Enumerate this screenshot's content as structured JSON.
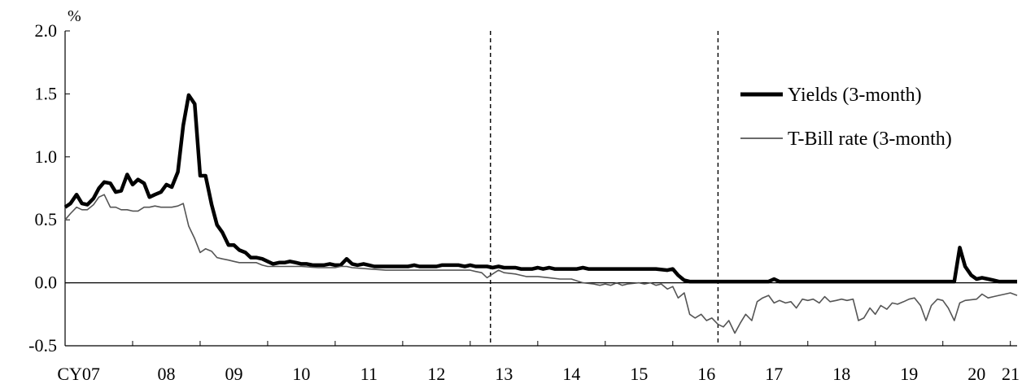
{
  "chart_data": {
    "type": "line",
    "y_unit": "%",
    "ylim": [
      -0.5,
      2.0
    ],
    "y_ticks": [
      "2.0",
      "1.5",
      "1.0",
      "0.5",
      "0.0",
      "-0.5"
    ],
    "x_ticks": [
      "CY07",
      "08",
      "09",
      "10",
      "11",
      "12",
      "13",
      "14",
      "15",
      "16",
      "17",
      "18",
      "19",
      "20",
      "21"
    ],
    "xlim": [
      2007.0,
      2021.1
    ],
    "reference_lines": [
      2013.3,
      2016.67
    ],
    "grid": false,
    "legend_position": "top-right",
    "series": [
      {
        "name": "Yields (3-month)",
        "style": "thick",
        "color": "#000000",
        "points": [
          [
            2007.0,
            0.6
          ],
          [
            2007.08,
            0.63
          ],
          [
            2007.17,
            0.7
          ],
          [
            2007.25,
            0.63
          ],
          [
            2007.33,
            0.62
          ],
          [
            2007.42,
            0.67
          ],
          [
            2007.5,
            0.75
          ],
          [
            2007.58,
            0.8
          ],
          [
            2007.67,
            0.79
          ],
          [
            2007.75,
            0.72
          ],
          [
            2007.83,
            0.73
          ],
          [
            2007.92,
            0.86
          ],
          [
            2008.0,
            0.78
          ],
          [
            2008.08,
            0.82
          ],
          [
            2008.17,
            0.79
          ],
          [
            2008.25,
            0.68
          ],
          [
            2008.33,
            0.7
          ],
          [
            2008.42,
            0.72
          ],
          [
            2008.5,
            0.78
          ],
          [
            2008.58,
            0.76
          ],
          [
            2008.67,
            0.88
          ],
          [
            2008.75,
            1.25
          ],
          [
            2008.83,
            1.49
          ],
          [
            2008.92,
            1.42
          ],
          [
            2009.0,
            0.85
          ],
          [
            2009.08,
            0.85
          ],
          [
            2009.17,
            0.62
          ],
          [
            2009.25,
            0.46
          ],
          [
            2009.33,
            0.4
          ],
          [
            2009.42,
            0.3
          ],
          [
            2009.5,
            0.3
          ],
          [
            2009.58,
            0.26
          ],
          [
            2009.67,
            0.24
          ],
          [
            2009.75,
            0.2
          ],
          [
            2009.83,
            0.2
          ],
          [
            2009.92,
            0.19
          ],
          [
            2010.0,
            0.17
          ],
          [
            2010.08,
            0.15
          ],
          [
            2010.17,
            0.16
          ],
          [
            2010.25,
            0.16
          ],
          [
            2010.33,
            0.17
          ],
          [
            2010.42,
            0.16
          ],
          [
            2010.5,
            0.15
          ],
          [
            2010.58,
            0.15
          ],
          [
            2010.67,
            0.14
          ],
          [
            2010.75,
            0.14
          ],
          [
            2010.83,
            0.14
          ],
          [
            2010.92,
            0.15
          ],
          [
            2011.0,
            0.14
          ],
          [
            2011.08,
            0.14
          ],
          [
            2011.17,
            0.19
          ],
          [
            2011.25,
            0.15
          ],
          [
            2011.33,
            0.14
          ],
          [
            2011.42,
            0.15
          ],
          [
            2011.5,
            0.14
          ],
          [
            2011.58,
            0.13
          ],
          [
            2011.67,
            0.13
          ],
          [
            2011.75,
            0.13
          ],
          [
            2011.83,
            0.13
          ],
          [
            2011.92,
            0.13
          ],
          [
            2012.0,
            0.13
          ],
          [
            2012.08,
            0.13
          ],
          [
            2012.17,
            0.14
          ],
          [
            2012.25,
            0.13
          ],
          [
            2012.33,
            0.13
          ],
          [
            2012.42,
            0.13
          ],
          [
            2012.5,
            0.13
          ],
          [
            2012.58,
            0.14
          ],
          [
            2012.67,
            0.14
          ],
          [
            2012.75,
            0.14
          ],
          [
            2012.83,
            0.14
          ],
          [
            2012.92,
            0.13
          ],
          [
            2013.0,
            0.14
          ],
          [
            2013.08,
            0.13
          ],
          [
            2013.17,
            0.13
          ],
          [
            2013.25,
            0.13
          ],
          [
            2013.33,
            0.12
          ],
          [
            2013.42,
            0.13
          ],
          [
            2013.5,
            0.12
          ],
          [
            2013.58,
            0.12
          ],
          [
            2013.67,
            0.12
          ],
          [
            2013.75,
            0.11
          ],
          [
            2013.83,
            0.11
          ],
          [
            2013.92,
            0.11
          ],
          [
            2014.0,
            0.12
          ],
          [
            2014.08,
            0.11
          ],
          [
            2014.17,
            0.12
          ],
          [
            2014.25,
            0.11
          ],
          [
            2014.33,
            0.11
          ],
          [
            2014.42,
            0.11
          ],
          [
            2014.5,
            0.11
          ],
          [
            2014.58,
            0.11
          ],
          [
            2014.67,
            0.12
          ],
          [
            2014.75,
            0.11
          ],
          [
            2014.83,
            0.11
          ],
          [
            2014.92,
            0.11
          ],
          [
            2015.0,
            0.11
          ],
          [
            2015.25,
            0.11
          ],
          [
            2015.5,
            0.11
          ],
          [
            2015.75,
            0.11
          ],
          [
            2015.92,
            0.1
          ],
          [
            2016.0,
            0.11
          ],
          [
            2016.08,
            0.06
          ],
          [
            2016.17,
            0.02
          ],
          [
            2016.25,
            0.01
          ],
          [
            2016.5,
            0.01
          ],
          [
            2016.67,
            0.01
          ],
          [
            2017.0,
            0.01
          ],
          [
            2017.42,
            0.01
          ],
          [
            2017.5,
            0.03
          ],
          [
            2017.58,
            0.01
          ],
          [
            2018.0,
            0.01
          ],
          [
            2018.5,
            0.01
          ],
          [
            2019.0,
            0.01
          ],
          [
            2019.5,
            0.01
          ],
          [
            2020.0,
            0.01
          ],
          [
            2020.17,
            0.01
          ],
          [
            2020.25,
            0.28
          ],
          [
            2020.33,
            0.13
          ],
          [
            2020.42,
            0.06
          ],
          [
            2020.5,
            0.03
          ],
          [
            2020.58,
            0.04
          ],
          [
            2020.67,
            0.03
          ],
          [
            2020.75,
            0.02
          ],
          [
            2020.83,
            0.01
          ],
          [
            2021.1,
            0.01
          ]
        ]
      },
      {
        "name": "T-Bill rate (3-month)",
        "style": "thin",
        "color": "#555555",
        "points": [
          [
            2007.0,
            0.5
          ],
          [
            2007.08,
            0.55
          ],
          [
            2007.17,
            0.6
          ],
          [
            2007.25,
            0.58
          ],
          [
            2007.33,
            0.58
          ],
          [
            2007.42,
            0.62
          ],
          [
            2007.5,
            0.68
          ],
          [
            2007.58,
            0.7
          ],
          [
            2007.67,
            0.6
          ],
          [
            2007.75,
            0.6
          ],
          [
            2007.83,
            0.58
          ],
          [
            2007.92,
            0.58
          ],
          [
            2008.0,
            0.57
          ],
          [
            2008.08,
            0.57
          ],
          [
            2008.17,
            0.6
          ],
          [
            2008.25,
            0.6
          ],
          [
            2008.33,
            0.61
          ],
          [
            2008.42,
            0.6
          ],
          [
            2008.5,
            0.6
          ],
          [
            2008.58,
            0.6
          ],
          [
            2008.67,
            0.61
          ],
          [
            2008.75,
            0.63
          ],
          [
            2008.83,
            0.45
          ],
          [
            2008.92,
            0.35
          ],
          [
            2009.0,
            0.24
          ],
          [
            2009.08,
            0.27
          ],
          [
            2009.17,
            0.25
          ],
          [
            2009.25,
            0.2
          ],
          [
            2009.33,
            0.19
          ],
          [
            2009.42,
            0.18
          ],
          [
            2009.5,
            0.17
          ],
          [
            2009.58,
            0.16
          ],
          [
            2009.67,
            0.16
          ],
          [
            2009.75,
            0.16
          ],
          [
            2009.83,
            0.16
          ],
          [
            2009.92,
            0.14
          ],
          [
            2010.0,
            0.13
          ],
          [
            2010.25,
            0.13
          ],
          [
            2010.5,
            0.13
          ],
          [
            2010.75,
            0.12
          ],
          [
            2011.0,
            0.12
          ],
          [
            2011.08,
            0.13
          ],
          [
            2011.17,
            0.13
          ],
          [
            2011.25,
            0.12
          ],
          [
            2011.5,
            0.11
          ],
          [
            2011.75,
            0.1
          ],
          [
            2012.0,
            0.1
          ],
          [
            2012.25,
            0.1
          ],
          [
            2012.5,
            0.1
          ],
          [
            2012.75,
            0.1
          ],
          [
            2013.0,
            0.1
          ],
          [
            2013.08,
            0.09
          ],
          [
            2013.17,
            0.08
          ],
          [
            2013.25,
            0.04
          ],
          [
            2013.33,
            0.07
          ],
          [
            2013.42,
            0.1
          ],
          [
            2013.5,
            0.08
          ],
          [
            2013.67,
            0.07
          ],
          [
            2013.83,
            0.05
          ],
          [
            2014.0,
            0.05
          ],
          [
            2014.17,
            0.04
          ],
          [
            2014.33,
            0.03
          ],
          [
            2014.5,
            0.03
          ],
          [
            2014.67,
            0.0
          ],
          [
            2014.83,
            -0.01
          ],
          [
            2014.92,
            -0.02
          ],
          [
            2015.0,
            -0.01
          ],
          [
            2015.08,
            -0.02
          ],
          [
            2015.17,
            0.0
          ],
          [
            2015.25,
            -0.02
          ],
          [
            2015.33,
            -0.01
          ],
          [
            2015.5,
            0.0
          ],
          [
            2015.58,
            -0.01
          ],
          [
            2015.67,
            0.0
          ],
          [
            2015.75,
            -0.02
          ],
          [
            2015.83,
            -0.01
          ],
          [
            2015.92,
            -0.05
          ],
          [
            2016.0,
            -0.03
          ],
          [
            2016.08,
            -0.12
          ],
          [
            2016.17,
            -0.08
          ],
          [
            2016.25,
            -0.25
          ],
          [
            2016.33,
            -0.28
          ],
          [
            2016.42,
            -0.25
          ],
          [
            2016.5,
            -0.3
          ],
          [
            2016.58,
            -0.28
          ],
          [
            2016.67,
            -0.33
          ],
          [
            2016.75,
            -0.35
          ],
          [
            2016.83,
            -0.3
          ],
          [
            2016.92,
            -0.4
          ],
          [
            2017.0,
            -0.32
          ],
          [
            2017.08,
            -0.25
          ],
          [
            2017.17,
            -0.3
          ],
          [
            2017.25,
            -0.15
          ],
          [
            2017.33,
            -0.12
          ],
          [
            2017.42,
            -0.1
          ],
          [
            2017.5,
            -0.16
          ],
          [
            2017.58,
            -0.14
          ],
          [
            2017.67,
            -0.16
          ],
          [
            2017.75,
            -0.15
          ],
          [
            2017.83,
            -0.2
          ],
          [
            2017.92,
            -0.13
          ],
          [
            2018.0,
            -0.14
          ],
          [
            2018.08,
            -0.13
          ],
          [
            2018.17,
            -0.16
          ],
          [
            2018.25,
            -0.11
          ],
          [
            2018.33,
            -0.15
          ],
          [
            2018.42,
            -0.14
          ],
          [
            2018.5,
            -0.13
          ],
          [
            2018.58,
            -0.14
          ],
          [
            2018.67,
            -0.13
          ],
          [
            2018.75,
            -0.3
          ],
          [
            2018.83,
            -0.28
          ],
          [
            2018.92,
            -0.2
          ],
          [
            2019.0,
            -0.25
          ],
          [
            2019.08,
            -0.18
          ],
          [
            2019.17,
            -0.21
          ],
          [
            2019.25,
            -0.16
          ],
          [
            2019.33,
            -0.17
          ],
          [
            2019.42,
            -0.15
          ],
          [
            2019.5,
            -0.13
          ],
          [
            2019.58,
            -0.12
          ],
          [
            2019.67,
            -0.18
          ],
          [
            2019.75,
            -0.3
          ],
          [
            2019.83,
            -0.18
          ],
          [
            2019.92,
            -0.13
          ],
          [
            2020.0,
            -0.14
          ],
          [
            2020.08,
            -0.2
          ],
          [
            2020.17,
            -0.3
          ],
          [
            2020.25,
            -0.16
          ],
          [
            2020.33,
            -0.14
          ],
          [
            2020.5,
            -0.13
          ],
          [
            2020.58,
            -0.09
          ],
          [
            2020.67,
            -0.12
          ],
          [
            2020.75,
            -0.11
          ],
          [
            2020.83,
            -0.1
          ],
          [
            2020.92,
            -0.09
          ],
          [
            2021.0,
            -0.08
          ],
          [
            2021.1,
            -0.1
          ]
        ]
      }
    ]
  }
}
